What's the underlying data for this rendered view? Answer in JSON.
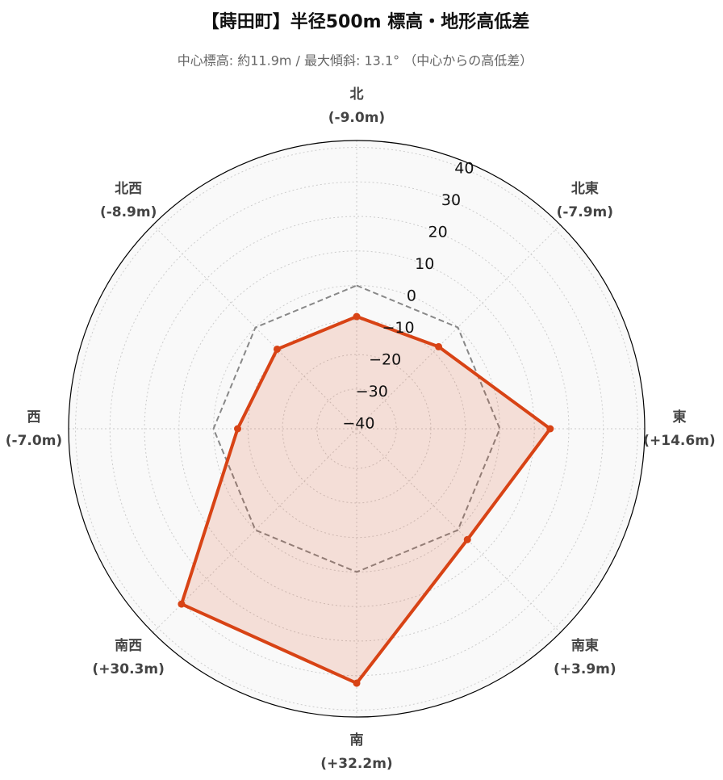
{
  "chart_data": {
    "type": "radar",
    "title": "【蒔田町】半径500m 標高・地形高低差",
    "subtitle": "中心標高: 約11.9m / 最大傾斜: 13.1° （中心からの高低差）",
    "categories": [
      "北",
      "北東",
      "東",
      "南東",
      "南",
      "南西",
      "西",
      "北西"
    ],
    "values": [
      -9.0,
      -7.9,
      14.6,
      3.9,
      32.2,
      30.3,
      -7.0,
      -8.9
    ],
    "value_labels": [
      "(-9.0m)",
      "(-7.9m)",
      "(+14.6m)",
      "(+3.9m)",
      "(+32.2m)",
      "(+30.3m)",
      "(-7.0m)",
      "(-8.9m)"
    ],
    "color": "#d84315",
    "baseline": 0,
    "ylim": [
      -41.5,
      42
    ],
    "yticks": [
      {
        "value": -40,
        "label": "−40"
      },
      {
        "value": -30,
        "label": "−30"
      },
      {
        "value": -20,
        "label": "−20"
      },
      {
        "value": -10,
        "label": "−10"
      },
      0,
      10,
      20,
      30,
      40
    ],
    "grid": true
  }
}
